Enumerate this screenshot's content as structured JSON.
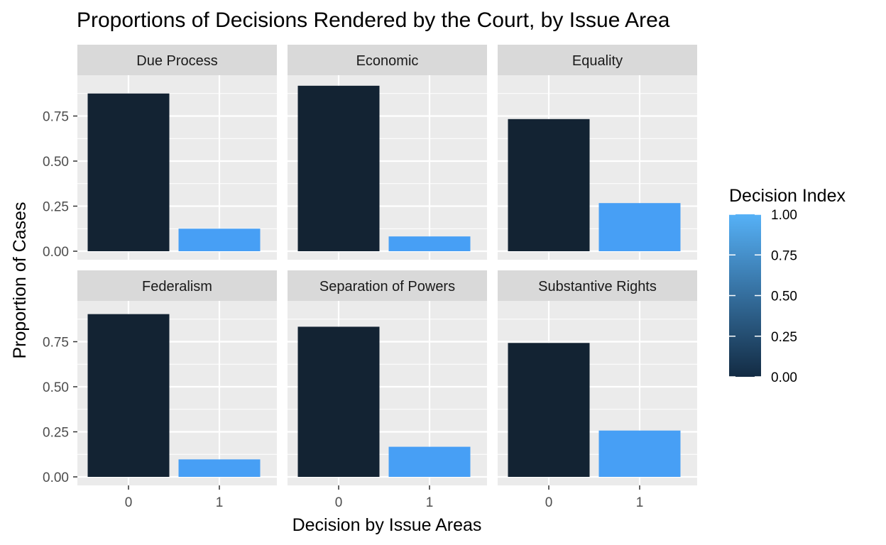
{
  "chart_data": {
    "type": "bar",
    "title": "Proportions of Decisions Rendered by the Court, by Issue Area",
    "xlabel": "Decision by Issue Areas",
    "ylabel": "Proportion of Cases",
    "categories": [
      "0",
      "1"
    ],
    "ylim": [
      0,
      0.95
    ],
    "yticks": [
      "0.00",
      "0.25",
      "0.50",
      "0.75"
    ],
    "ytick_values": [
      0,
      0.25,
      0.5,
      0.75
    ],
    "grid": true,
    "layout": "facet 2 rows x 3 columns",
    "panels": [
      {
        "name": "Due Process",
        "values": [
          0.875,
          0.125
        ]
      },
      {
        "name": "Economic",
        "values": [
          0.918,
          0.082
        ]
      },
      {
        "name": "Equality",
        "values": [
          0.733,
          0.267
        ]
      },
      {
        "name": "Federalism",
        "values": [
          0.903,
          0.097
        ]
      },
      {
        "name": "Separation of Powers",
        "values": [
          0.833,
          0.167
        ]
      },
      {
        "name": "Substantive Rights",
        "values": [
          0.743,
          0.257
        ]
      }
    ],
    "legend": {
      "title": "Decision Index",
      "placement": "right",
      "type": "continuous colorbar",
      "labels": [
        "1.00",
        "0.75",
        "0.50",
        "0.25",
        "0.00"
      ],
      "values": [
        1,
        0.75,
        0.5,
        0.25,
        0
      ],
      "color_low": "#132B43",
      "color_high": "#56B1F7"
    },
    "colors": {
      "bar_low": "#132333",
      "bar_high": "#479FF5",
      "panel_background": "#EBEBEB",
      "grid": "#FFFFFF",
      "strip_background": "#D9D9D9",
      "tick_text": "#4D4D4D"
    }
  }
}
